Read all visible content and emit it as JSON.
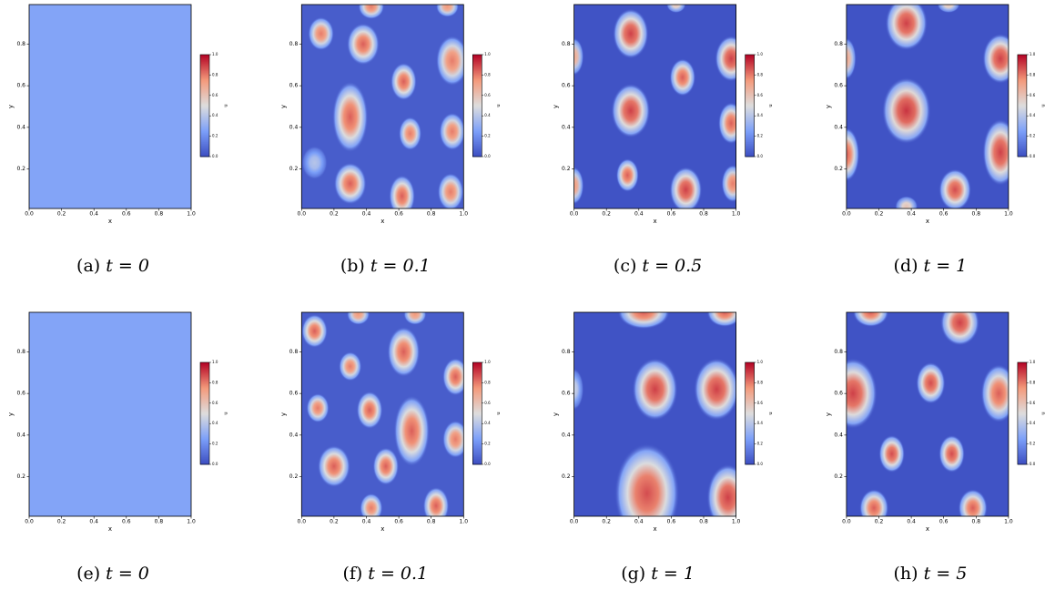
{
  "chart_data": [
    {
      "type": "contour",
      "caption_label": "(a)",
      "caption": "t = 0",
      "xlabel": "x",
      "ylabel": "y",
      "colorbar_label": "u",
      "colormap": "coolwarm",
      "background": 0.27,
      "xlim": [
        0,
        1
      ],
      "ylim": [
        0.01,
        0.99
      ],
      "clim": [
        0,
        1
      ],
      "xticks": [
        {
          "value": 0,
          "label": "0.0"
        },
        {
          "value": 0.2,
          "label": "0.2"
        },
        {
          "value": 0.4,
          "label": "0.4"
        },
        {
          "value": 0.6,
          "label": "0.6"
        },
        {
          "value": 0.8,
          "label": "0.8"
        },
        {
          "value": 1,
          "label": "1.0"
        }
      ],
      "yticks": [
        0.2,
        0.4,
        0.6,
        0.8
      ],
      "cticks": [
        {
          "value": 0,
          "label": "0.0"
        },
        {
          "value": 0.2,
          "label": "0.2"
        },
        {
          "value": 0.4,
          "label": "0.4"
        },
        {
          "value": 0.6,
          "label": "0.6"
        },
        {
          "value": 0.8,
          "label": "0.8"
        },
        {
          "value": 1,
          "label": "1.0"
        }
      ],
      "spots": []
    },
    {
      "type": "contour",
      "caption_label": "(b)",
      "caption": "t = 0.1",
      "xlabel": "x",
      "ylabel": "y",
      "colorbar_label": "u",
      "colormap": "coolwarm",
      "background": 0.05,
      "xlim": [
        0,
        1
      ],
      "ylim": [
        0.01,
        0.99
      ],
      "clim": [
        0,
        1
      ],
      "xticks": [
        {
          "value": 0,
          "label": "0.0"
        },
        {
          "value": 0.2,
          "label": "0.2"
        },
        {
          "value": 0.4,
          "label": "0.4"
        },
        {
          "value": 0.6,
          "label": "0.6"
        },
        {
          "value": 0.8,
          "label": "0.8"
        },
        {
          "value": 1,
          "label": "1.0"
        }
      ],
      "yticks": [
        0.2,
        0.4,
        0.6,
        0.8
      ],
      "cticks": [
        {
          "value": 0,
          "label": "0.0"
        },
        {
          "value": 0.2,
          "label": "0.2"
        },
        {
          "value": 0.4,
          "label": "0.4"
        },
        {
          "value": 0.6,
          "label": "0.6"
        },
        {
          "value": 0.8,
          "label": "0.8"
        },
        {
          "value": 1,
          "label": "1.0"
        }
      ],
      "spots": [
        {
          "x": 0.12,
          "y": 0.85,
          "rx": 0.08,
          "ry": 0.08,
          "u": 0.8
        },
        {
          "x": 0.38,
          "y": 0.8,
          "rx": 0.1,
          "ry": 0.1,
          "u": 0.85
        },
        {
          "x": 0.43,
          "y": 0.98,
          "rx": 0.08,
          "ry": 0.06,
          "u": 0.8
        },
        {
          "x": 0.9,
          "y": 0.98,
          "rx": 0.07,
          "ry": 0.05,
          "u": 0.75
        },
        {
          "x": 0.93,
          "y": 0.72,
          "rx": 0.1,
          "ry": 0.12,
          "u": 0.8
        },
        {
          "x": 0.3,
          "y": 0.45,
          "rx": 0.11,
          "ry": 0.17,
          "u": 0.85
        },
        {
          "x": 0.63,
          "y": 0.62,
          "rx": 0.08,
          "ry": 0.09,
          "u": 0.85
        },
        {
          "x": 0.67,
          "y": 0.37,
          "rx": 0.07,
          "ry": 0.08,
          "u": 0.8
        },
        {
          "x": 0.93,
          "y": 0.38,
          "rx": 0.08,
          "ry": 0.09,
          "u": 0.8
        },
        {
          "x": 0.3,
          "y": 0.13,
          "rx": 0.1,
          "ry": 0.1,
          "u": 0.85
        },
        {
          "x": 0.62,
          "y": 0.07,
          "rx": 0.08,
          "ry": 0.1,
          "u": 0.85
        },
        {
          "x": 0.92,
          "y": 0.09,
          "rx": 0.08,
          "ry": 0.09,
          "u": 0.8
        },
        {
          "x": 0.08,
          "y": 0.23,
          "rx": 0.08,
          "ry": 0.08,
          "u": 0.4
        }
      ]
    },
    {
      "type": "contour",
      "caption_label": "(c)",
      "caption": "t = 0.5",
      "xlabel": "x",
      "ylabel": "y",
      "colorbar_label": "u",
      "colormap": "coolwarm",
      "background": 0.02,
      "xlim": [
        0,
        1
      ],
      "ylim": [
        0.01,
        0.99
      ],
      "clim": [
        0,
        1
      ],
      "xticks": [
        {
          "value": 0,
          "label": "0.0"
        },
        {
          "value": 0.2,
          "label": "0.2"
        },
        {
          "value": 0.4,
          "label": "0.4"
        },
        {
          "value": 0.6,
          "label": "0.6"
        },
        {
          "value": 0.8,
          "label": "0.8"
        },
        {
          "value": 1,
          "label": "1.0"
        }
      ],
      "yticks": [
        0.2,
        0.4,
        0.6,
        0.8
      ],
      "cticks": [
        {
          "value": 0,
          "label": "0.0"
        },
        {
          "value": 0.2,
          "label": "0.2"
        },
        {
          "value": 0.4,
          "label": "0.4"
        },
        {
          "value": 0.6,
          "label": "0.6"
        },
        {
          "value": 0.8,
          "label": "0.8"
        },
        {
          "value": 1,
          "label": "1.0"
        }
      ],
      "spots": [
        {
          "x": 0.35,
          "y": 0.85,
          "rx": 0.11,
          "ry": 0.12,
          "u": 0.9
        },
        {
          "x": 0.67,
          "y": 0.64,
          "rx": 0.08,
          "ry": 0.09,
          "u": 0.85
        },
        {
          "x": 0.97,
          "y": 0.73,
          "rx": 0.1,
          "ry": 0.11,
          "u": 0.9
        },
        {
          "x": 0.0,
          "y": 0.74,
          "rx": 0.06,
          "ry": 0.09,
          "u": 0.7
        },
        {
          "x": 0.35,
          "y": 0.48,
          "rx": 0.12,
          "ry": 0.13,
          "u": 0.9
        },
        {
          "x": 0.97,
          "y": 0.42,
          "rx": 0.08,
          "ry": 0.1,
          "u": 0.85
        },
        {
          "x": 0.33,
          "y": 0.17,
          "rx": 0.07,
          "ry": 0.08,
          "u": 0.85
        },
        {
          "x": 0.69,
          "y": 0.1,
          "rx": 0.1,
          "ry": 0.11,
          "u": 0.9
        },
        {
          "x": 0.0,
          "y": 0.12,
          "rx": 0.06,
          "ry": 0.09,
          "u": 0.75
        },
        {
          "x": 0.98,
          "y": 0.13,
          "rx": 0.07,
          "ry": 0.09,
          "u": 0.8
        },
        {
          "x": 0.63,
          "y": 0.99,
          "rx": 0.06,
          "ry": 0.04,
          "u": 0.6
        }
      ]
    },
    {
      "type": "contour",
      "caption_label": "(d)",
      "caption": "t = 1",
      "xlabel": "x",
      "ylabel": "y",
      "colorbar_label": "u",
      "colormap": "coolwarm",
      "background": 0.02,
      "xlim": [
        0,
        1
      ],
      "ylim": [
        0.01,
        0.99
      ],
      "clim": [
        0,
        1
      ],
      "xticks": [
        {
          "value": 0,
          "label": "0.0"
        },
        {
          "value": 0.2,
          "label": "0.2"
        },
        {
          "value": 0.4,
          "label": "0.4"
        },
        {
          "value": 0.6,
          "label": "0.6"
        },
        {
          "value": 0.8,
          "label": "0.8"
        },
        {
          "value": 1,
          "label": "1.0"
        }
      ],
      "yticks": [
        0.2,
        0.4,
        0.6,
        0.8
      ],
      "cticks": [
        {
          "value": 0,
          "label": "0.0"
        },
        {
          "value": 0.2,
          "label": "0.2"
        },
        {
          "value": 0.4,
          "label": "0.4"
        },
        {
          "value": 0.6,
          "label": "0.6"
        },
        {
          "value": 0.8,
          "label": "0.8"
        },
        {
          "value": 1,
          "label": "1.0"
        }
      ],
      "spots": [
        {
          "x": 0.37,
          "y": 0.9,
          "rx": 0.13,
          "ry": 0.13,
          "u": 0.9
        },
        {
          "x": 0.63,
          "y": 0.99,
          "rx": 0.07,
          "ry": 0.04,
          "u": 0.6
        },
        {
          "x": 0.95,
          "y": 0.73,
          "rx": 0.11,
          "ry": 0.12,
          "u": 0.9
        },
        {
          "x": 0.0,
          "y": 0.73,
          "rx": 0.06,
          "ry": 0.1,
          "u": 0.7
        },
        {
          "x": 0.37,
          "y": 0.48,
          "rx": 0.15,
          "ry": 0.16,
          "u": 0.92
        },
        {
          "x": 0.0,
          "y": 0.27,
          "rx": 0.08,
          "ry": 0.13,
          "u": 0.85
        },
        {
          "x": 0.95,
          "y": 0.28,
          "rx": 0.11,
          "ry": 0.16,
          "u": 0.9
        },
        {
          "x": 0.67,
          "y": 0.1,
          "rx": 0.1,
          "ry": 0.1,
          "u": 0.88
        },
        {
          "x": 0.37,
          "y": 0.02,
          "rx": 0.07,
          "ry": 0.05,
          "u": 0.6
        }
      ]
    },
    {
      "type": "contour",
      "caption_label": "(e)",
      "caption": "t = 0",
      "xlabel": "x",
      "ylabel": "y",
      "colorbar_label": "u",
      "colormap": "coolwarm",
      "background": 0.27,
      "xlim": [
        0,
        1
      ],
      "ylim": [
        0.01,
        0.99
      ],
      "clim": [
        0,
        1
      ],
      "xticks": [
        {
          "value": 0,
          "label": "0.0"
        },
        {
          "value": 0.2,
          "label": "0.2"
        },
        {
          "value": 0.4,
          "label": "0.4"
        },
        {
          "value": 0.6,
          "label": "0.6"
        },
        {
          "value": 0.8,
          "label": "0.8"
        },
        {
          "value": 1,
          "label": "1.0"
        }
      ],
      "yticks": [
        0.2,
        0.4,
        0.6,
        0.8
      ],
      "cticks": [
        {
          "value": 0,
          "label": "0.0"
        },
        {
          "value": 0.2,
          "label": "0.2"
        },
        {
          "value": 0.4,
          "label": "0.4"
        },
        {
          "value": 0.6,
          "label": "0.6"
        },
        {
          "value": 0.8,
          "label": "0.8"
        },
        {
          "value": 1,
          "label": "1.0"
        }
      ],
      "spots": []
    },
    {
      "type": "contour",
      "caption_label": "(f)",
      "caption": "t = 0.1",
      "xlabel": "x",
      "ylabel": "y",
      "colorbar_label": "u",
      "colormap": "coolwarm",
      "background": 0.05,
      "xlim": [
        0,
        1
      ],
      "ylim": [
        0.01,
        0.99
      ],
      "clim": [
        0,
        1
      ],
      "xticks": [
        {
          "value": 0,
          "label": "0.0"
        },
        {
          "value": 0.2,
          "label": "0.2"
        },
        {
          "value": 0.4,
          "label": "0.4"
        },
        {
          "value": 0.6,
          "label": "0.6"
        },
        {
          "value": 0.8,
          "label": "0.8"
        },
        {
          "value": 1,
          "label": "1.0"
        }
      ],
      "yticks": [
        0.2,
        0.4,
        0.6,
        0.8
      ],
      "cticks": [
        {
          "value": 0,
          "label": "0.0"
        },
        {
          "value": 0.2,
          "label": "0.2"
        },
        {
          "value": 0.4,
          "label": "0.4"
        },
        {
          "value": 0.6,
          "label": "0.6"
        },
        {
          "value": 0.8,
          "label": "0.8"
        },
        {
          "value": 1,
          "label": "1.0"
        }
      ],
      "spots": [
        {
          "x": 0.08,
          "y": 0.9,
          "rx": 0.08,
          "ry": 0.08,
          "u": 0.85
        },
        {
          "x": 0.35,
          "y": 0.98,
          "rx": 0.07,
          "ry": 0.05,
          "u": 0.75
        },
        {
          "x": 0.7,
          "y": 0.98,
          "rx": 0.07,
          "ry": 0.05,
          "u": 0.75
        },
        {
          "x": 0.63,
          "y": 0.8,
          "rx": 0.1,
          "ry": 0.12,
          "u": 0.85
        },
        {
          "x": 0.3,
          "y": 0.73,
          "rx": 0.07,
          "ry": 0.07,
          "u": 0.8
        },
        {
          "x": 0.95,
          "y": 0.68,
          "rx": 0.08,
          "ry": 0.09,
          "u": 0.85
        },
        {
          "x": 0.1,
          "y": 0.53,
          "rx": 0.07,
          "ry": 0.07,
          "u": 0.8
        },
        {
          "x": 0.42,
          "y": 0.52,
          "rx": 0.08,
          "ry": 0.09,
          "u": 0.85
        },
        {
          "x": 0.95,
          "y": 0.38,
          "rx": 0.08,
          "ry": 0.09,
          "u": 0.8
        },
        {
          "x": 0.68,
          "y": 0.42,
          "rx": 0.11,
          "ry": 0.17,
          "u": 0.85
        },
        {
          "x": 0.2,
          "y": 0.25,
          "rx": 0.1,
          "ry": 0.1,
          "u": 0.85
        },
        {
          "x": 0.52,
          "y": 0.25,
          "rx": 0.08,
          "ry": 0.09,
          "u": 0.85
        },
        {
          "x": 0.43,
          "y": 0.05,
          "rx": 0.07,
          "ry": 0.07,
          "u": 0.8
        },
        {
          "x": 0.83,
          "y": 0.06,
          "rx": 0.08,
          "ry": 0.09,
          "u": 0.85
        }
      ]
    },
    {
      "type": "contour",
      "caption_label": "(g)",
      "caption": "t = 1",
      "xlabel": "x",
      "ylabel": "y",
      "colorbar_label": "u",
      "colormap": "coolwarm",
      "background": 0.02,
      "xlim": [
        0,
        1
      ],
      "ylim": [
        0.01,
        0.99
      ],
      "clim": [
        0,
        1
      ],
      "xticks": [
        {
          "value": 0,
          "label": "0.0"
        },
        {
          "value": 0.2,
          "label": "0.2"
        },
        {
          "value": 0.4,
          "label": "0.4"
        },
        {
          "value": 0.6,
          "label": "0.6"
        },
        {
          "value": 0.8,
          "label": "0.8"
        },
        {
          "value": 1,
          "label": "1.0"
        }
      ],
      "yticks": [
        0.2,
        0.4,
        0.6,
        0.8
      ],
      "cticks": [
        {
          "value": 0,
          "label": "0.0"
        },
        {
          "value": 0.2,
          "label": "0.2"
        },
        {
          "value": 0.4,
          "label": "0.4"
        },
        {
          "value": 0.6,
          "label": "0.6"
        },
        {
          "value": 0.8,
          "label": "0.8"
        },
        {
          "value": 1,
          "label": "1.0"
        }
      ],
      "spots": [
        {
          "x": 0.43,
          "y": 0.99,
          "rx": 0.16,
          "ry": 0.08,
          "u": 0.85
        },
        {
          "x": 0.93,
          "y": 0.99,
          "rx": 0.11,
          "ry": 0.07,
          "u": 0.85
        },
        {
          "x": 0.5,
          "y": 0.62,
          "rx": 0.14,
          "ry": 0.15,
          "u": 0.9
        },
        {
          "x": 0.88,
          "y": 0.62,
          "rx": 0.14,
          "ry": 0.15,
          "u": 0.9
        },
        {
          "x": 0.0,
          "y": 0.62,
          "rx": 0.06,
          "ry": 0.1,
          "u": 0.45
        },
        {
          "x": 0.45,
          "y": 0.12,
          "rx": 0.2,
          "ry": 0.24,
          "u": 0.88
        },
        {
          "x": 0.95,
          "y": 0.1,
          "rx": 0.13,
          "ry": 0.16,
          "u": 0.9
        }
      ]
    },
    {
      "type": "contour",
      "caption_label": "(h)",
      "caption": "t = 5",
      "xlabel": "x",
      "ylabel": "y",
      "colorbar_label": "u",
      "colormap": "coolwarm",
      "background": 0.02,
      "xlim": [
        0,
        1
      ],
      "ylim": [
        0.01,
        0.99
      ],
      "clim": [
        0,
        1
      ],
      "xticks": [
        {
          "value": 0,
          "label": "0.0"
        },
        {
          "value": 0.2,
          "label": "0.2"
        },
        {
          "value": 0.4,
          "label": "0.4"
        },
        {
          "value": 0.6,
          "label": "0.6"
        },
        {
          "value": 0.8,
          "label": "0.8"
        },
        {
          "value": 1,
          "label": "1.0"
        }
      ],
      "yticks": [
        0.2,
        0.4,
        0.6,
        0.8
      ],
      "cticks": [
        {
          "value": 0,
          "label": "0.0"
        },
        {
          "value": 0.2,
          "label": "0.2"
        },
        {
          "value": 0.4,
          "label": "0.4"
        },
        {
          "value": 0.6,
          "label": "0.6"
        },
        {
          "value": 0.8,
          "label": "0.8"
        },
        {
          "value": 1,
          "label": "1.0"
        }
      ],
      "spots": [
        {
          "x": 0.15,
          "y": 0.99,
          "rx": 0.11,
          "ry": 0.07,
          "u": 0.85
        },
        {
          "x": 0.7,
          "y": 0.94,
          "rx": 0.12,
          "ry": 0.11,
          "u": 0.9
        },
        {
          "x": 0.04,
          "y": 0.6,
          "rx": 0.15,
          "ry": 0.17,
          "u": 0.9
        },
        {
          "x": 0.94,
          "y": 0.6,
          "rx": 0.11,
          "ry": 0.14,
          "u": 0.85
        },
        {
          "x": 0.52,
          "y": 0.65,
          "rx": 0.09,
          "ry": 0.1,
          "u": 0.88
        },
        {
          "x": 0.28,
          "y": 0.31,
          "rx": 0.08,
          "ry": 0.09,
          "u": 0.88
        },
        {
          "x": 0.65,
          "y": 0.31,
          "rx": 0.08,
          "ry": 0.09,
          "u": 0.88
        },
        {
          "x": 0.17,
          "y": 0.05,
          "rx": 0.09,
          "ry": 0.09,
          "u": 0.85
        },
        {
          "x": 0.78,
          "y": 0.05,
          "rx": 0.09,
          "ry": 0.09,
          "u": 0.85
        }
      ]
    }
  ]
}
